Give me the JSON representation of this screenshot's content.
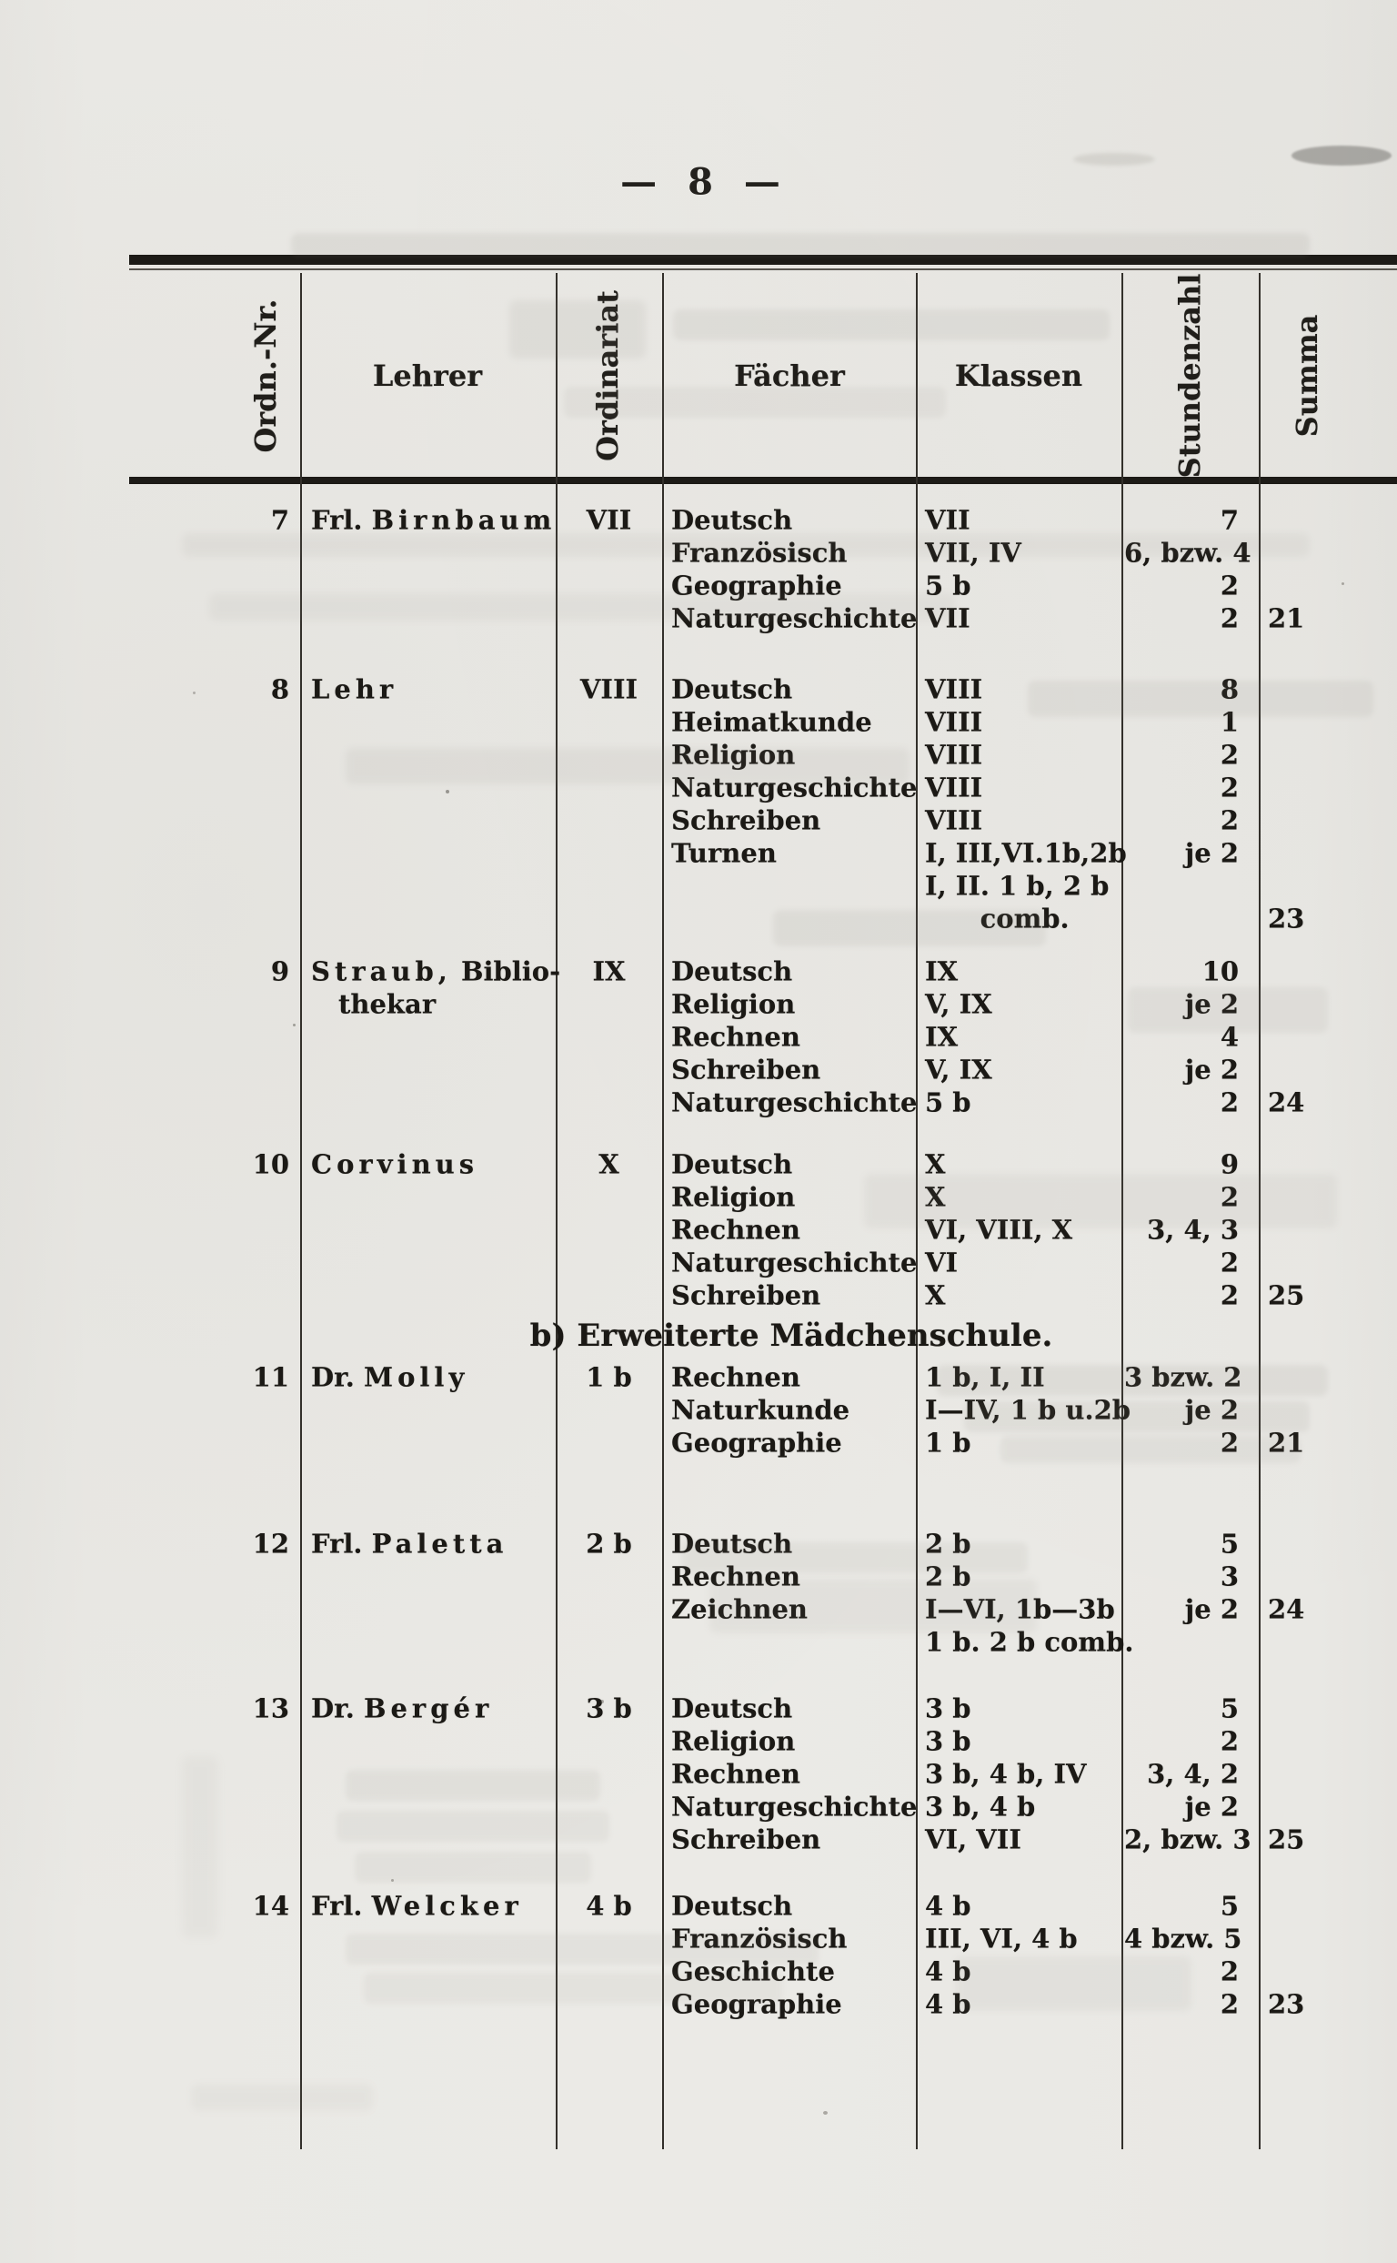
{
  "page": {
    "number_display": "— 8 —",
    "number": "8"
  },
  "table": {
    "headers": {
      "ordn_nr": "Ordn.-Nr.",
      "lehrer": "Lehrer",
      "ordinariat": "Ordinariat",
      "faecher": "Fächer",
      "klassen": "Klassen",
      "stundenzahl": "Stundenzahl",
      "summa": "Summa"
    },
    "sections": [
      {
        "title": "",
        "rows": [
          {
            "nr": "7",
            "teacher": {
              "prefix": "Frl.",
              "spaced": "Birnbaum",
              "rest": "",
              "line2": ""
            },
            "ordinariat": "VII",
            "lines": [
              {
                "subject": "Deutsch",
                "classes": "VII",
                "hours": "7"
              },
              {
                "subject": "Französisch",
                "classes": "VII, IV",
                "hours": "6, bzw. 4"
              },
              {
                "subject": "Geographie",
                "classes": "5 b",
                "hours": "2"
              },
              {
                "subject": "Naturgeschichte",
                "classes": "VII",
                "hours": "2"
              }
            ],
            "summa": "21",
            "summa_line": 3
          },
          {
            "nr": "8",
            "teacher": {
              "prefix": "",
              "spaced": "Lehr",
              "rest": "",
              "line2": ""
            },
            "ordinariat": "VIII",
            "lines": [
              {
                "subject": "Deutsch",
                "classes": "VIII",
                "hours": "8"
              },
              {
                "subject": "Heimatkunde",
                "classes": "VIII",
                "hours": "1"
              },
              {
                "subject": "Religion",
                "classes": "VIII",
                "hours": "2"
              },
              {
                "subject": "Naturgeschichte",
                "classes": "VIII",
                "hours": "2"
              },
              {
                "subject": "Schreiben",
                "classes": "VIII",
                "hours": "2"
              },
              {
                "subject": "Turnen",
                "classes": "I, III,VI.1b,2b",
                "hours": "je 2"
              },
              {
                "subject": "",
                "classes": "I, II. 1 b, 2 b",
                "hours": ""
              },
              {
                "subject": "",
                "classes": "      comb.",
                "hours": ""
              }
            ],
            "summa": "23",
            "summa_line": 7
          },
          {
            "nr": "9",
            "teacher": {
              "prefix": "",
              "spaced": "Straub,",
              "rest": "Biblio-",
              "line2": "thekar"
            },
            "ordinariat": "IX",
            "lines": [
              {
                "subject": "Deutsch",
                "classes": "IX",
                "hours": "10"
              },
              {
                "subject": "Religion",
                "classes": "V, IX",
                "hours": "je 2"
              },
              {
                "subject": "Rechnen",
                "classes": "IX",
                "hours": "4"
              },
              {
                "subject": "Schreiben",
                "classes": "V, IX",
                "hours": "je 2"
              },
              {
                "subject": "Naturgeschichte",
                "classes": "5 b",
                "hours": "2"
              }
            ],
            "summa": "24",
            "summa_line": 4
          },
          {
            "nr": "10",
            "teacher": {
              "prefix": "",
              "spaced": "Corvinus",
              "rest": "",
              "line2": ""
            },
            "ordinariat": "X",
            "lines": [
              {
                "subject": "Deutsch",
                "classes": "X",
                "hours": "9"
              },
              {
                "subject": "Religion",
                "classes": "X",
                "hours": "2"
              },
              {
                "subject": "Rechnen",
                "classes": "VI, VIII, X",
                "hours": "3, 4, 3"
              },
              {
                "subject": "Naturgeschichte",
                "classes": "VI",
                "hours": "2"
              },
              {
                "subject": "Schreiben",
                "classes": "X",
                "hours": "2"
              }
            ],
            "summa": "25",
            "summa_line": 4
          }
        ]
      },
      {
        "title": "b) Erweiterte Mädchenschule.",
        "rows": [
          {
            "nr": "11",
            "teacher": {
              "prefix": "Dr.",
              "spaced": "Molly",
              "rest": "",
              "line2": ""
            },
            "ordinariat": "1 b",
            "lines": [
              {
                "subject": "Rechnen",
                "classes": "1 b, I, II",
                "hours": "3 bzw. 2"
              },
              {
                "subject": "Naturkunde",
                "classes": "I—IV, 1 b u.2b",
                "hours": "je 2"
              },
              {
                "subject": "Geographie",
                "classes": "1 b",
                "hours": "2"
              }
            ],
            "summa": "21",
            "summa_line": 2
          },
          {
            "nr": "12",
            "teacher": {
              "prefix": "Frl.",
              "spaced": "Paletta",
              "rest": "",
              "line2": ""
            },
            "ordinariat": "2 b",
            "lines": [
              {
                "subject": "Deutsch",
                "classes": "2 b",
                "hours": "5"
              },
              {
                "subject": "Rechnen",
                "classes": "2 b",
                "hours": "3"
              },
              {
                "subject": "Zeichnen",
                "classes": "I—VI, 1b—3b",
                "hours": "je 2"
              },
              {
                "subject": "",
                "classes": "1 b. 2 b comb.",
                "hours": ""
              }
            ],
            "summa": "24",
            "summa_line": 2
          },
          {
            "nr": "13",
            "teacher": {
              "prefix": "Dr.",
              "spaced": "Bergér",
              "rest": "",
              "line2": ""
            },
            "ordinariat": "3 b",
            "lines": [
              {
                "subject": "Deutsch",
                "classes": "3 b",
                "hours": "5"
              },
              {
                "subject": "Religion",
                "classes": "3 b",
                "hours": "2"
              },
              {
                "subject": "Rechnen",
                "classes": "3 b, 4 b, IV",
                "hours": "3, 4, 2"
              },
              {
                "subject": "Naturgeschichte",
                "classes": "3 b, 4 b",
                "hours": "je 2"
              },
              {
                "subject": "Schreiben",
                "classes": "VI, VII",
                "hours": "2, bzw. 3"
              }
            ],
            "summa": "25",
            "summa_line": 4
          },
          {
            "nr": "14",
            "teacher": {
              "prefix": "Frl.",
              "spaced": "Welcker",
              "rest": "",
              "line2": ""
            },
            "ordinariat": "4 b",
            "lines": [
              {
                "subject": "Deutsch",
                "classes": "4 b",
                "hours": "5"
              },
              {
                "subject": "Französisch",
                "classes": "III, VI, 4 b",
                "hours": "4 bzw. 5"
              },
              {
                "subject": "Geschichte",
                "classes": "4 b",
                "hours": "2"
              },
              {
                "subject": "Geographie",
                "classes": "4 b",
                "hours": "2"
              }
            ],
            "summa": "23",
            "summa_line": 3
          }
        ]
      }
    ]
  }
}
